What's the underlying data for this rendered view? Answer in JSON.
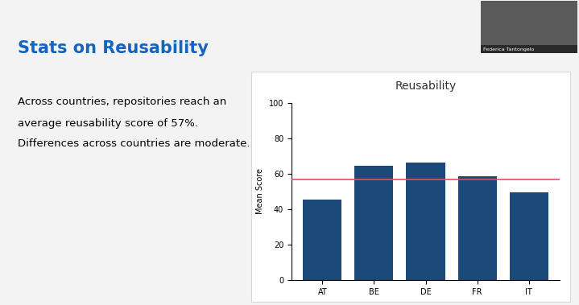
{
  "slide": {
    "title": "Stats on Reusability",
    "text_lines": [
      "Across countries, repositories reach an",
      "average reusability score of 57%.",
      "Differences across countries are moderate."
    ],
    "speaker": "Federica Tantongelo"
  },
  "chart_data": {
    "type": "bar",
    "title": "Reusability",
    "y_label": "Mean Score",
    "categories": [
      "AT",
      "BE",
      "DE",
      "FR",
      "IT"
    ],
    "values": [
      45.5,
      64.5,
      66.5,
      58.5,
      49.5
    ],
    "color": "#1b4a78",
    "average": 57,
    "ylim": [
      0,
      100
    ],
    "yticks": [
      0,
      20,
      40,
      60,
      80,
      100
    ],
    "grid": false
  }
}
